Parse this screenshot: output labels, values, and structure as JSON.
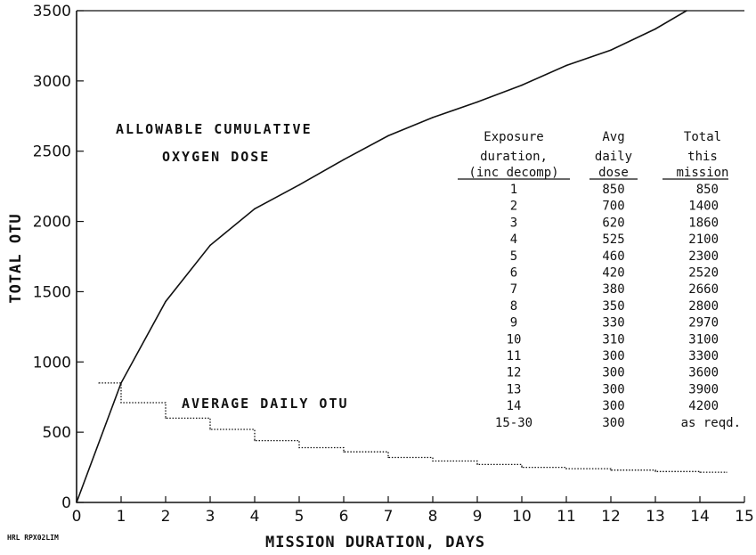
{
  "chart_data": {
    "type": "line",
    "xlabel": "MISSION DURATION, DAYS",
    "ylabel": "TOTAL OTU",
    "xlim": [
      0,
      15
    ],
    "ylim": [
      0,
      3500
    ],
    "x_ticks": [
      0,
      1,
      2,
      3,
      4,
      5,
      6,
      7,
      8,
      9,
      10,
      11,
      12,
      13,
      14,
      15
    ],
    "y_ticks": [
      0,
      500,
      1000,
      1500,
      2000,
      2500,
      3000,
      3500
    ],
    "grid": false,
    "annotations": {
      "cumulative_line1": "ALLOWABLE CUMULATIVE",
      "cumulative_line2": "OXYGEN DOSE",
      "average": "AVERAGE DAILY OTU"
    },
    "footer": "HRL RPX02LIM",
    "series": [
      {
        "style": "solid",
        "x": [
          0,
          1,
          2,
          3,
          4,
          5,
          6,
          7,
          8,
          9,
          10,
          11,
          12,
          13,
          13.7
        ],
        "y": [
          0,
          850,
          1430,
          1830,
          2090,
          2260,
          2440,
          2610,
          2740,
          2850,
          2970,
          3110,
          3220,
          3370,
          3500
        ]
      },
      {
        "style": "dotted-step",
        "x": [
          0.5,
          1,
          2,
          3,
          4,
          5,
          6,
          7,
          8,
          9,
          10,
          11,
          12,
          13,
          14,
          14.6
        ],
        "y": [
          850,
          710,
          600,
          520,
          440,
          390,
          360,
          320,
          295,
          270,
          250,
          240,
          230,
          220,
          215,
          215
        ]
      }
    ],
    "table": {
      "headers": [
        [
          "Exposure",
          "duration,",
          "(inc decomp)"
        ],
        [
          "Avg",
          "daily",
          "dose"
        ],
        [
          "Total",
          "this",
          "mission"
        ]
      ],
      "rows": [
        [
          "1",
          "850",
          "850"
        ],
        [
          "2",
          "700",
          "1400"
        ],
        [
          "3",
          "620",
          "1860"
        ],
        [
          "4",
          "525",
          "2100"
        ],
        [
          "5",
          "460",
          "2300"
        ],
        [
          "6",
          "420",
          "2520"
        ],
        [
          "7",
          "380",
          "2660"
        ],
        [
          "8",
          "350",
          "2800"
        ],
        [
          "9",
          "330",
          "2970"
        ],
        [
          "10",
          "310",
          "3100"
        ],
        [
          "11",
          "300",
          "3300"
        ],
        [
          "12",
          "300",
          "3600"
        ],
        [
          "13",
          "300",
          "3900"
        ],
        [
          "14",
          "300",
          "4200"
        ],
        [
          "15-30",
          "300",
          "as reqd."
        ]
      ]
    }
  }
}
